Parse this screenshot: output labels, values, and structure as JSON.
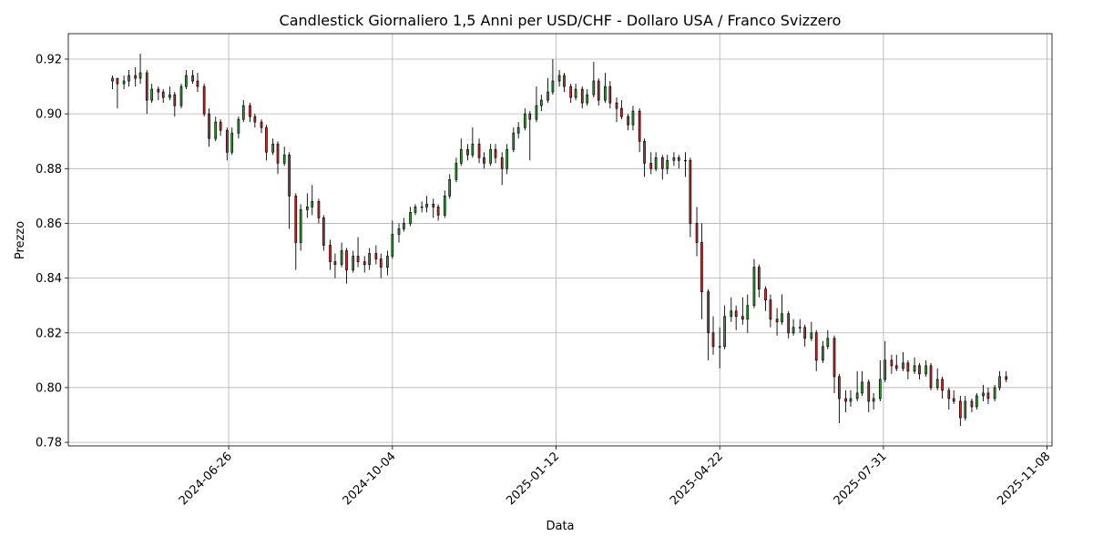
{
  "chart_data": {
    "type": "candlestick",
    "title": "Candlestick Giornaliero 1,5 Anni per USD/CHF - Dollaro USA / Franco Svizzero",
    "x_label": "Data",
    "y_label": "Prezzo",
    "x": [
      "2024-04-16",
      "2024-04-19",
      "2024-04-23",
      "2024-04-26",
      "2024-04-30",
      "2024-05-03",
      "2024-05-07",
      "2024-05-10",
      "2024-05-14",
      "2024-05-17",
      "2024-05-21",
      "2024-05-24",
      "2024-05-28",
      "2024-05-31",
      "2024-06-04",
      "2024-06-07",
      "2024-06-11",
      "2024-06-14",
      "2024-06-18",
      "2024-06-21",
      "2024-06-25",
      "2024-06-28",
      "2024-07-02",
      "2024-07-05",
      "2024-07-09",
      "2024-07-12",
      "2024-07-16",
      "2024-07-19",
      "2024-07-23",
      "2024-07-26",
      "2024-07-30",
      "2024-08-02",
      "2024-08-06",
      "2024-08-09",
      "2024-08-13",
      "2024-08-16",
      "2024-08-20",
      "2024-08-23",
      "2024-08-27",
      "2024-08-30",
      "2024-09-03",
      "2024-09-06",
      "2024-09-10",
      "2024-09-13",
      "2024-09-17",
      "2024-09-20",
      "2024-09-24",
      "2024-09-27",
      "2024-10-01",
      "2024-10-04",
      "2024-10-08",
      "2024-10-11",
      "2024-10-15",
      "2024-10-18",
      "2024-10-22",
      "2024-10-25",
      "2024-10-29",
      "2024-11-01",
      "2024-11-05",
      "2024-11-08",
      "2024-11-12",
      "2024-11-15",
      "2024-11-19",
      "2024-11-22",
      "2024-11-26",
      "2024-11-29",
      "2024-12-03",
      "2024-12-06",
      "2024-12-10",
      "2024-12-13",
      "2024-12-17",
      "2024-12-20",
      "2024-12-24",
      "2024-12-27",
      "2024-12-31",
      "2025-01-03",
      "2025-01-07",
      "2025-01-10",
      "2025-01-14",
      "2025-01-17",
      "2025-01-21",
      "2025-01-24",
      "2025-01-28",
      "2025-01-31",
      "2025-02-04",
      "2025-02-07",
      "2025-02-11",
      "2025-02-14",
      "2025-02-18",
      "2025-02-21",
      "2025-02-25",
      "2025-02-28",
      "2025-03-04",
      "2025-03-07",
      "2025-03-11",
      "2025-03-14",
      "2025-03-18",
      "2025-03-21",
      "2025-03-25",
      "2025-03-28",
      "2025-04-01",
      "2025-04-04",
      "2025-04-08",
      "2025-04-11",
      "2025-04-15",
      "2025-04-18",
      "2025-04-22",
      "2025-04-25",
      "2025-04-29",
      "2025-05-02",
      "2025-05-06",
      "2025-05-09",
      "2025-05-13",
      "2025-05-16",
      "2025-05-20",
      "2025-05-23",
      "2025-05-27",
      "2025-05-30",
      "2025-06-03",
      "2025-06-06",
      "2025-06-10",
      "2025-06-13",
      "2025-06-17",
      "2025-06-20",
      "2025-06-24",
      "2025-06-27",
      "2025-07-01",
      "2025-07-04",
      "2025-07-08",
      "2025-07-11",
      "2025-07-15",
      "2025-07-18",
      "2025-07-22",
      "2025-07-25",
      "2025-07-29",
      "2025-08-01",
      "2025-08-05",
      "2025-08-08",
      "2025-08-12",
      "2025-08-15",
      "2025-08-19",
      "2025-08-22",
      "2025-08-26",
      "2025-08-29",
      "2025-09-02",
      "2025-09-05",
      "2025-09-09",
      "2025-09-12",
      "2025-09-16",
      "2025-09-19",
      "2025-09-23",
      "2025-09-26",
      "2025-09-30",
      "2025-10-03",
      "2025-10-07",
      "2025-10-10",
      "2025-10-14"
    ],
    "open": [
      0.912,
      0.913,
      0.911,
      0.912,
      0.914,
      0.913,
      0.915,
      0.905,
      0.909,
      0.908,
      0.906,
      0.907,
      0.903,
      0.91,
      0.914,
      0.912,
      0.91,
      0.9,
      0.891,
      0.897,
      0.894,
      0.886,
      0.893,
      0.898,
      0.903,
      0.899,
      0.897,
      0.895,
      0.886,
      0.889,
      0.882,
      0.885,
      0.87,
      0.853,
      0.865,
      0.866,
      0.868,
      0.862,
      0.852,
      0.846,
      0.845,
      0.85,
      0.843,
      0.848,
      0.846,
      0.845,
      0.849,
      0.847,
      0.844,
      0.848,
      0.856,
      0.858,
      0.86,
      0.864,
      0.866,
      0.866,
      0.867,
      0.866,
      0.863,
      0.87,
      0.876,
      0.882,
      0.887,
      0.885,
      0.889,
      0.884,
      0.882,
      0.887,
      0.884,
      0.88,
      0.887,
      0.893,
      0.895,
      0.9,
      0.898,
      0.903,
      0.905,
      0.908,
      0.912,
      0.914,
      0.91,
      0.906,
      0.909,
      0.904,
      0.907,
      0.912,
      0.905,
      0.91,
      0.904,
      0.902,
      0.899,
      0.896,
      0.901,
      0.89,
      0.882,
      0.88,
      0.884,
      0.88,
      0.883,
      0.884,
      0.883,
      0.883,
      0.86,
      0.853,
      0.835,
      0.82,
      0.815,
      0.815,
      0.826,
      0.828,
      0.826,
      0.825,
      0.83,
      0.844,
      0.836,
      0.832,
      0.825,
      0.824,
      0.827,
      0.82,
      0.822,
      0.822,
      0.818,
      0.82,
      0.81,
      0.815,
      0.818,
      0.804,
      0.796,
      0.795,
      0.796,
      0.798,
      0.802,
      0.795,
      0.796,
      0.803,
      0.81,
      0.808,
      0.807,
      0.809,
      0.806,
      0.808,
      0.805,
      0.808,
      0.8,
      0.803,
      0.799,
      0.796,
      0.795,
      0.789,
      0.795,
      0.793,
      0.797,
      0.798,
      0.796,
      0.8,
      0.804
    ],
    "high": [
      0.914,
      0.913,
      0.914,
      0.916,
      0.917,
      0.922,
      0.916,
      0.911,
      0.91,
      0.909,
      0.91,
      0.908,
      0.911,
      0.916,
      0.916,
      0.915,
      0.911,
      0.902,
      0.899,
      0.898,
      0.895,
      0.895,
      0.899,
      0.905,
      0.904,
      0.9,
      0.898,
      0.896,
      0.891,
      0.89,
      0.888,
      0.886,
      0.871,
      0.867,
      0.871,
      0.874,
      0.869,
      0.863,
      0.854,
      0.849,
      0.853,
      0.851,
      0.85,
      0.855,
      0.848,
      0.851,
      0.852,
      0.849,
      0.85,
      0.861,
      0.86,
      0.862,
      0.866,
      0.867,
      0.868,
      0.87,
      0.869,
      0.867,
      0.872,
      0.878,
      0.884,
      0.891,
      0.889,
      0.895,
      0.891,
      0.886,
      0.889,
      0.889,
      0.886,
      0.889,
      0.895,
      0.897,
      0.902,
      0.901,
      0.91,
      0.907,
      0.913,
      0.92,
      0.916,
      0.915,
      0.911,
      0.911,
      0.91,
      0.909,
      0.919,
      0.913,
      0.915,
      0.912,
      0.906,
      0.905,
      0.9,
      0.903,
      0.902,
      0.891,
      0.886,
      0.886,
      0.885,
      0.885,
      0.886,
      0.885,
      0.886,
      0.884,
      0.866,
      0.86,
      0.836,
      0.826,
      0.822,
      0.83,
      0.833,
      0.83,
      0.833,
      0.834,
      0.847,
      0.845,
      0.837,
      0.834,
      0.829,
      0.834,
      0.828,
      0.825,
      0.825,
      0.823,
      0.824,
      0.821,
      0.817,
      0.821,
      0.819,
      0.805,
      0.799,
      0.799,
      0.806,
      0.806,
      0.803,
      0.798,
      0.81,
      0.817,
      0.812,
      0.812,
      0.813,
      0.81,
      0.811,
      0.809,
      0.81,
      0.809,
      0.807,
      0.804,
      0.8,
      0.799,
      0.797,
      0.797,
      0.796,
      0.798,
      0.801,
      0.8,
      0.801,
      0.806,
      0.806
    ],
    "low": [
      0.909,
      0.902,
      0.909,
      0.91,
      0.91,
      0.911,
      0.9,
      0.904,
      0.905,
      0.904,
      0.905,
      0.899,
      0.902,
      0.909,
      0.911,
      0.908,
      0.899,
      0.888,
      0.89,
      0.892,
      0.883,
      0.885,
      0.891,
      0.897,
      0.897,
      0.895,
      0.893,
      0.883,
      0.885,
      0.878,
      0.881,
      0.858,
      0.843,
      0.85,
      0.862,
      0.863,
      0.86,
      0.85,
      0.843,
      0.84,
      0.844,
      0.838,
      0.842,
      0.844,
      0.842,
      0.843,
      0.845,
      0.84,
      0.841,
      0.847,
      0.853,
      0.857,
      0.859,
      0.863,
      0.864,
      0.864,
      0.862,
      0.861,
      0.862,
      0.869,
      0.875,
      0.881,
      0.883,
      0.884,
      0.882,
      0.88,
      0.881,
      0.882,
      0.874,
      0.878,
      0.886,
      0.891,
      0.894,
      0.883,
      0.897,
      0.901,
      0.904,
      0.907,
      0.91,
      0.908,
      0.904,
      0.905,
      0.902,
      0.903,
      0.906,
      0.903,
      0.904,
      0.902,
      0.897,
      0.898,
      0.894,
      0.894,
      0.886,
      0.877,
      0.878,
      0.879,
      0.876,
      0.878,
      0.881,
      0.88,
      0.877,
      0.855,
      0.848,
      0.825,
      0.81,
      0.812,
      0.807,
      0.814,
      0.824,
      0.821,
      0.823,
      0.82,
      0.829,
      0.833,
      0.828,
      0.822,
      0.819,
      0.823,
      0.818,
      0.819,
      0.82,
      0.815,
      0.817,
      0.806,
      0.809,
      0.814,
      0.798,
      0.787,
      0.791,
      0.793,
      0.795,
      0.797,
      0.791,
      0.792,
      0.795,
      0.802,
      0.805,
      0.806,
      0.806,
      0.803,
      0.805,
      0.803,
      0.804,
      0.799,
      0.799,
      0.796,
      0.792,
      0.794,
      0.786,
      0.788,
      0.791,
      0.792,
      0.795,
      0.794,
      0.795,
      0.799,
      0.802
    ],
    "close": [
      0.913,
      0.911,
      0.912,
      0.914,
      0.913,
      0.915,
      0.905,
      0.909,
      0.908,
      0.906,
      0.907,
      0.903,
      0.91,
      0.914,
      0.912,
      0.91,
      0.9,
      0.891,
      0.897,
      0.894,
      0.886,
      0.893,
      0.898,
      0.903,
      0.899,
      0.897,
      0.895,
      0.886,
      0.889,
      0.882,
      0.885,
      0.87,
      0.853,
      0.865,
      0.866,
      0.868,
      0.862,
      0.852,
      0.846,
      0.845,
      0.85,
      0.843,
      0.848,
      0.846,
      0.845,
      0.849,
      0.847,
      0.844,
      0.848,
      0.856,
      0.858,
      0.86,
      0.864,
      0.866,
      0.866,
      0.867,
      0.866,
      0.863,
      0.87,
      0.876,
      0.882,
      0.887,
      0.885,
      0.889,
      0.884,
      0.882,
      0.887,
      0.884,
      0.88,
      0.887,
      0.893,
      0.895,
      0.9,
      0.898,
      0.903,
      0.905,
      0.908,
      0.912,
      0.914,
      0.91,
      0.906,
      0.909,
      0.904,
      0.907,
      0.912,
      0.905,
      0.91,
      0.904,
      0.902,
      0.899,
      0.896,
      0.901,
      0.89,
      0.882,
      0.88,
      0.884,
      0.88,
      0.883,
      0.884,
      0.883,
      0.883,
      0.86,
      0.853,
      0.835,
      0.82,
      0.815,
      0.815,
      0.826,
      0.828,
      0.826,
      0.825,
      0.83,
      0.844,
      0.836,
      0.832,
      0.825,
      0.824,
      0.827,
      0.82,
      0.822,
      0.822,
      0.818,
      0.82,
      0.81,
      0.815,
      0.818,
      0.804,
      0.796,
      0.795,
      0.796,
      0.798,
      0.802,
      0.795,
      0.796,
      0.803,
      0.81,
      0.808,
      0.807,
      0.809,
      0.806,
      0.808,
      0.805,
      0.808,
      0.8,
      0.803,
      0.799,
      0.796,
      0.795,
      0.789,
      0.795,
      0.793,
      0.797,
      0.798,
      0.796,
      0.8,
      0.804,
      0.803
    ],
    "up_color": "#2ca02c",
    "down_color": "#d62728",
    "edge_color": "#000000",
    "xlim": [
      "2024-03-20",
      "2025-11-11"
    ],
    "xticks": [
      "2024-06-26",
      "2024-10-04",
      "2025-01-12",
      "2025-04-22",
      "2025-07-31",
      "2025-11-08"
    ],
    "ylim": [
      0.7787,
      0.9293
    ],
    "yticks": [
      0.78,
      {
        "value": 0.8,
        "label": "0.80"
      },
      0.82,
      0.84,
      0.86,
      0.88,
      {
        "value": 0.9,
        "label": "0.90"
      },
      0.92
    ],
    "grid": true
  }
}
